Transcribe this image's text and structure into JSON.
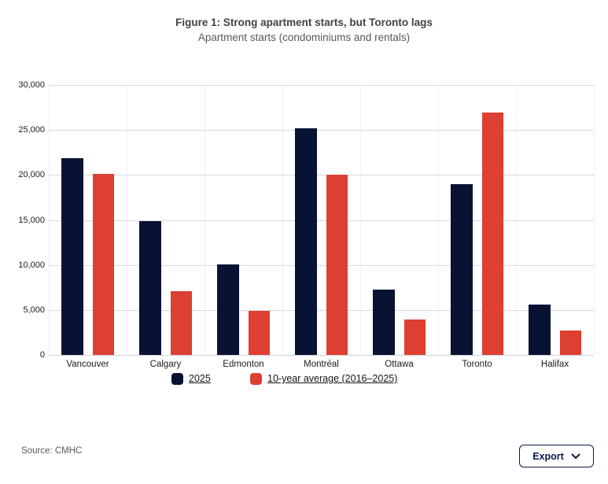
{
  "chart_data": {
    "type": "bar",
    "title": "Figure 1: Strong apartment starts, but Toronto lags",
    "subtitle": "Apartment starts (condominiums and rentals)",
    "categories": [
      "Vancouver",
      "Calgary",
      "Edmonton",
      "Montréal",
      "Ottawa",
      "Toronto",
      "Halifax"
    ],
    "series": [
      {
        "name": "2025",
        "color": "#081233",
        "values": [
          21900,
          14900,
          10100,
          25200,
          7300,
          19000,
          5600
        ]
      },
      {
        "name": "10-year average (2016–2025)",
        "color": "#dd3f32",
        "values": [
          20100,
          7100,
          4900,
          20000,
          3900,
          26900,
          2700
        ]
      }
    ],
    "xlabel": "",
    "ylabel": "",
    "ylim": [
      0,
      30000
    ],
    "ytick_values": [
      0,
      5000,
      10000,
      15000,
      20000,
      25000,
      30000
    ],
    "ytick_labels": [
      "0",
      "5,000",
      "10,000",
      "15,000",
      "20,000",
      "25,000",
      "30,000"
    ],
    "grid": true,
    "legend_position": "bottom"
  },
  "footer": {
    "source": "Source: CMHC",
    "export_label": "Export"
  },
  "colors": {
    "bar_navy": "#081233",
    "bar_red": "#dd3f32",
    "grid_horizontal": "#d9d9e3",
    "grid_vertical": "#eef0f5",
    "baseline": "#d2d2dc",
    "title_text": "#424242",
    "subtitle_text": "#595959",
    "axis_text": "#1c1c1c",
    "button_navy": "#0c1b4d"
  }
}
